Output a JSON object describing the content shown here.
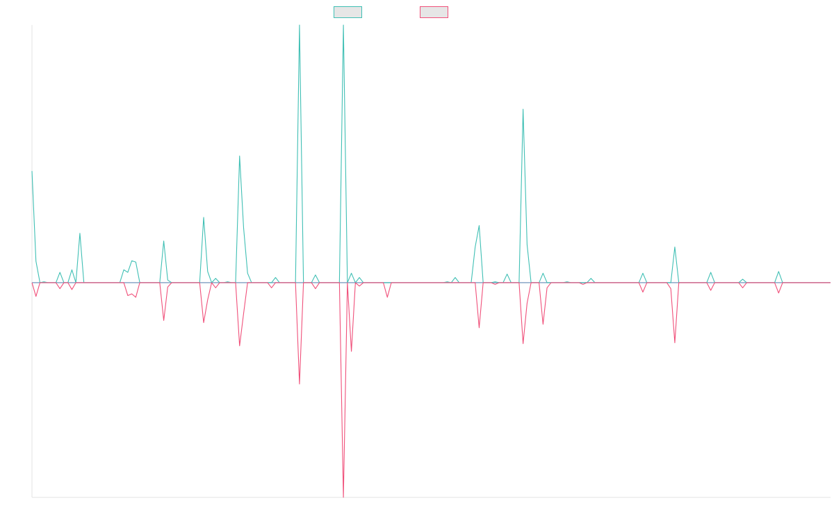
{
  "chart_data": {
    "type": "line",
    "title": "",
    "xlabel": "",
    "ylabel": "",
    "legend_position": "top-center",
    "grid": false,
    "axes_visible": true,
    "xlim": [
      0,
      200
    ],
    "ylim": [
      -50,
      60
    ],
    "colors": {
      "series_a": "#3fbfb4",
      "series_b": "#f0507a",
      "baseline": "#8aa6c7",
      "axis": "#e3e3e3",
      "legend_fill": "#e6e6e6"
    },
    "series": [
      {
        "values": [
          {
            "x": 0,
            "y": 26
          },
          {
            "x": 1,
            "y": 5
          },
          {
            "x": 3,
            "y": 0.2
          },
          {
            "x": 7,
            "y": 2.4
          },
          {
            "x": 10,
            "y": 3
          },
          {
            "x": 12,
            "y": 11.5
          },
          {
            "x": 23,
            "y": 3
          },
          {
            "x": 24,
            "y": 2.4
          },
          {
            "x": 25,
            "y": 5.1
          },
          {
            "x": 26,
            "y": 4.8
          },
          {
            "x": 33,
            "y": 9.7
          },
          {
            "x": 34,
            "y": 0.6
          },
          {
            "x": 43,
            "y": 15.2
          },
          {
            "x": 44,
            "y": 2.6
          },
          {
            "x": 46,
            "y": 1
          },
          {
            "x": 49,
            "y": 0.2
          },
          {
            "x": 52,
            "y": 29.5
          },
          {
            "x": 53,
            "y": 12.8
          },
          {
            "x": 54,
            "y": 2.2
          },
          {
            "x": 61,
            "y": 1.2
          },
          {
            "x": 67,
            "y": 60
          },
          {
            "x": 71,
            "y": 1.8
          },
          {
            "x": 78,
            "y": 60
          },
          {
            "x": 80,
            "y": 2.2
          },
          {
            "x": 82,
            "y": 1.2
          },
          {
            "x": 104,
            "y": 0.2
          },
          {
            "x": 106,
            "y": 1.2
          },
          {
            "x": 111,
            "y": 8.3
          },
          {
            "x": 112,
            "y": 13.3
          },
          {
            "x": 116,
            "y": 0.2
          },
          {
            "x": 119,
            "y": 2
          },
          {
            "x": 123,
            "y": 40.4
          },
          {
            "x": 124,
            "y": 8.9
          },
          {
            "x": 128,
            "y": 2.2
          },
          {
            "x": 134,
            "y": 0.2
          },
          {
            "x": 140,
            "y": 1
          },
          {
            "x": 153,
            "y": 2.2
          },
          {
            "x": 161,
            "y": 8.3
          },
          {
            "x": 170,
            "y": 2.4
          },
          {
            "x": 178,
            "y": 0.8
          },
          {
            "x": 187,
            "y": 2.6
          }
        ]
      },
      {
        "values": [
          {
            "x": 1,
            "y": -3.2
          },
          {
            "x": 7,
            "y": -1.4
          },
          {
            "x": 10,
            "y": -1.6
          },
          {
            "x": 24,
            "y": -3
          },
          {
            "x": 25,
            "y": -2.6
          },
          {
            "x": 26,
            "y": -3.4
          },
          {
            "x": 33,
            "y": -8.8
          },
          {
            "x": 34,
            "y": -1
          },
          {
            "x": 43,
            "y": -9.3
          },
          {
            "x": 44,
            "y": -4
          },
          {
            "x": 46,
            "y": -1.2
          },
          {
            "x": 52,
            "y": -14.7
          },
          {
            "x": 53,
            "y": -7.2
          },
          {
            "x": 60,
            "y": -1.2
          },
          {
            "x": 67,
            "y": -23.6
          },
          {
            "x": 71,
            "y": -1.4
          },
          {
            "x": 78,
            "y": -50
          },
          {
            "x": 80,
            "y": -16
          },
          {
            "x": 82,
            "y": -0.8
          },
          {
            "x": 89,
            "y": -3.4
          },
          {
            "x": 112,
            "y": -10.5
          },
          {
            "x": 116,
            "y": -0.4
          },
          {
            "x": 123,
            "y": -14.2
          },
          {
            "x": 124,
            "y": -4.8
          },
          {
            "x": 128,
            "y": -9.7
          },
          {
            "x": 129,
            "y": -1.2
          },
          {
            "x": 138,
            "y": -0.4
          },
          {
            "x": 153,
            "y": -2.2
          },
          {
            "x": 160,
            "y": -1.4
          },
          {
            "x": 161,
            "y": -14
          },
          {
            "x": 170,
            "y": -1.8
          },
          {
            "x": 178,
            "y": -1.2
          },
          {
            "x": 187,
            "y": -2.4
          }
        ]
      }
    ]
  }
}
